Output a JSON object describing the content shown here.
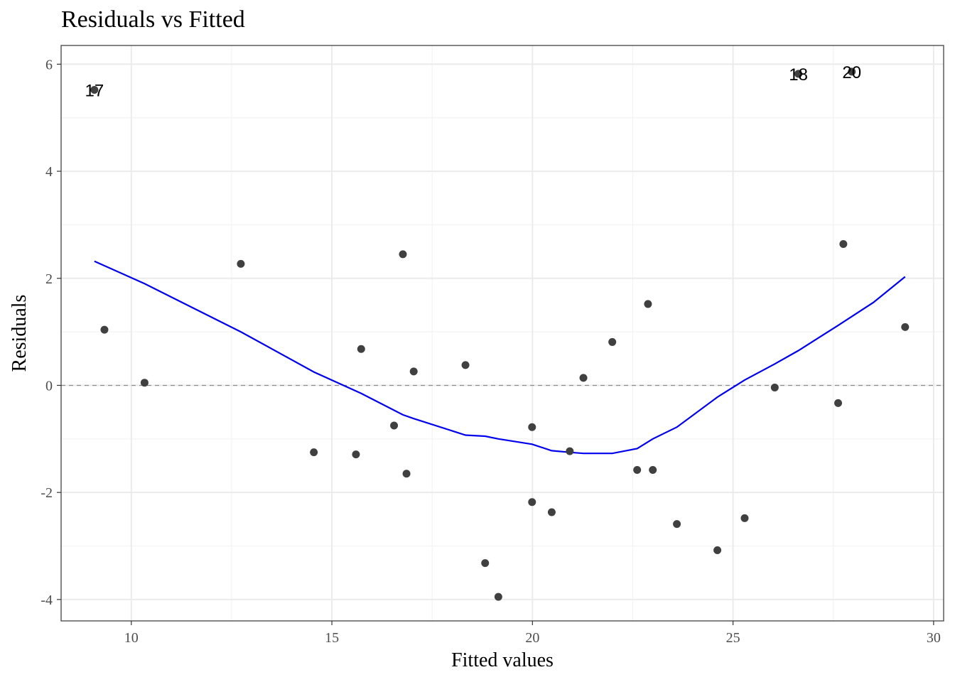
{
  "chart_data": {
    "type": "scatter",
    "title": "Residuals vs Fitted",
    "xlabel": "Fitted values",
    "ylabel": "Residuals",
    "xlim": [
      8.25,
      30.25
    ],
    "ylim": [
      -4.4,
      6.35
    ],
    "x_ticks": [
      10,
      15,
      20,
      25,
      30
    ],
    "y_ticks": [
      -4,
      -2,
      0,
      2,
      4,
      6
    ],
    "x_tick_labels": [
      "10",
      "15",
      "20",
      "25",
      "30"
    ],
    "y_tick_labels": [
      "-4",
      "-2",
      "0",
      "2",
      "4",
      "6"
    ],
    "grid": true,
    "reference_line": {
      "y": 0,
      "style": "dashed"
    },
    "colors": {
      "points": "#404040",
      "smooth": "#0000ee",
      "grid_major": "#ebebeb",
      "grid_minor": "#f3f3f3",
      "reference": "#8c8c8c",
      "panel_border": "#333333"
    },
    "points": [
      {
        "x": 9.08,
        "y": 5.52
      },
      {
        "x": 9.33,
        "y": 1.04
      },
      {
        "x": 10.33,
        "y": 0.05
      },
      {
        "x": 12.73,
        "y": 2.27
      },
      {
        "x": 14.55,
        "y": -1.25
      },
      {
        "x": 15.6,
        "y": -1.29
      },
      {
        "x": 15.73,
        "y": 0.68
      },
      {
        "x": 16.55,
        "y": -0.75
      },
      {
        "x": 16.77,
        "y": 2.45
      },
      {
        "x": 16.86,
        "y": -1.65
      },
      {
        "x": 17.04,
        "y": 0.26
      },
      {
        "x": 18.33,
        "y": 0.38
      },
      {
        "x": 18.82,
        "y": -3.32
      },
      {
        "x": 19.15,
        "y": -3.95
      },
      {
        "x": 19.99,
        "y": -0.78
      },
      {
        "x": 19.99,
        "y": -2.18
      },
      {
        "x": 20.48,
        "y": -2.37
      },
      {
        "x": 20.93,
        "y": -1.23
      },
      {
        "x": 21.27,
        "y": 0.14
      },
      {
        "x": 21.99,
        "y": 0.81
      },
      {
        "x": 22.61,
        "y": -1.58
      },
      {
        "x": 22.88,
        "y": 1.52
      },
      {
        "x": 23.0,
        "y": -1.58
      },
      {
        "x": 23.6,
        "y": -2.59
      },
      {
        "x": 24.61,
        "y": -3.08
      },
      {
        "x": 25.29,
        "y": -2.48
      },
      {
        "x": 26.04,
        "y": -0.04
      },
      {
        "x": 26.63,
        "y": 5.82
      },
      {
        "x": 27.62,
        "y": -0.33
      },
      {
        "x": 27.75,
        "y": 2.64
      },
      {
        "x": 27.96,
        "y": 5.86
      },
      {
        "x": 29.29,
        "y": 1.09
      }
    ],
    "point_labels": [
      {
        "x": 9.08,
        "y": 5.52,
        "text": "17"
      },
      {
        "x": 26.63,
        "y": 5.82,
        "text": "18"
      },
      {
        "x": 27.96,
        "y": 5.86,
        "text": "20"
      }
    ],
    "smooth_line": [
      {
        "x": 9.08,
        "y": 2.32
      },
      {
        "x": 10.33,
        "y": 1.9
      },
      {
        "x": 12.73,
        "y": 1.0
      },
      {
        "x": 14.55,
        "y": 0.25
      },
      {
        "x": 15.73,
        "y": -0.15
      },
      {
        "x": 16.77,
        "y": -0.55
      },
      {
        "x": 17.04,
        "y": -0.62
      },
      {
        "x": 18.33,
        "y": -0.93
      },
      {
        "x": 18.82,
        "y": -0.95
      },
      {
        "x": 19.15,
        "y": -1.0
      },
      {
        "x": 19.99,
        "y": -1.1
      },
      {
        "x": 20.48,
        "y": -1.22
      },
      {
        "x": 20.93,
        "y": -1.25
      },
      {
        "x": 21.27,
        "y": -1.27
      },
      {
        "x": 21.99,
        "y": -1.27
      },
      {
        "x": 22.61,
        "y": -1.18
      },
      {
        "x": 23.0,
        "y": -1.0
      },
      {
        "x": 23.6,
        "y": -0.78
      },
      {
        "x": 24.61,
        "y": -0.22
      },
      {
        "x": 25.29,
        "y": 0.1
      },
      {
        "x": 26.04,
        "y": 0.4
      },
      {
        "x": 26.63,
        "y": 0.65
      },
      {
        "x": 27.62,
        "y": 1.12
      },
      {
        "x": 28.5,
        "y": 1.55
      },
      {
        "x": 29.29,
        "y": 2.03
      }
    ]
  }
}
